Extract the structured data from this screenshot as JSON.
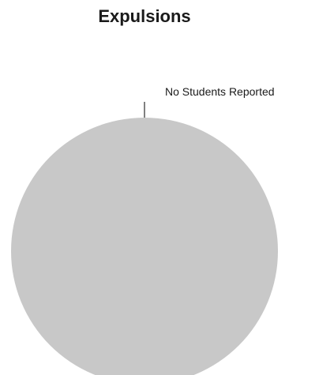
{
  "chart_data": {
    "type": "pie",
    "title": "Expulsions",
    "categories": [
      "No Students Reported"
    ],
    "values": [
      1
    ],
    "colors": [
      "#c8c8c8"
    ],
    "label_color": "#1a1a1a",
    "leader_color": "#555555"
  }
}
